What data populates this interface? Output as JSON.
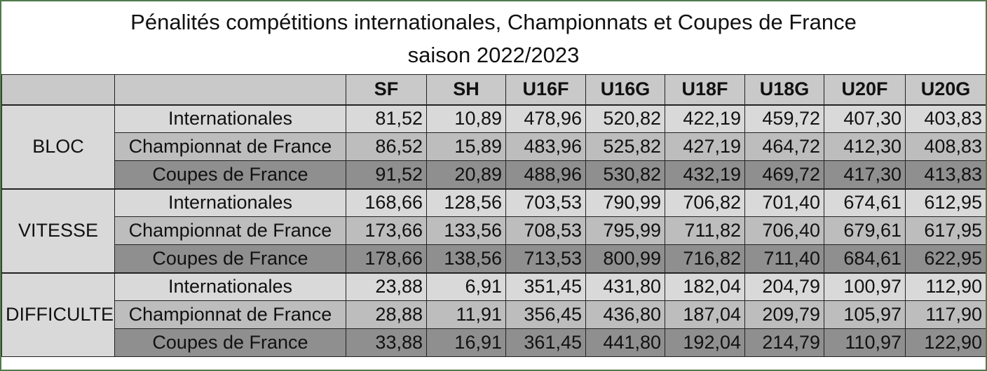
{
  "title": {
    "line1": "Pénalités compétitions internationales,  Championnats et Coupes de France",
    "line2": "saison 2022/2023"
  },
  "header": {
    "corner1": "",
    "corner2": "",
    "columns": [
      "SF",
      "SH",
      "U16F",
      "U16G",
      "U18F",
      "U18G",
      "U20F",
      "U20G"
    ]
  },
  "groups": [
    {
      "name": "BLOC",
      "rows": [
        {
          "label": "Internationales",
          "values": [
            "81,52",
            "10,89",
            "478,96",
            "520,82",
            "422,19",
            "459,72",
            "407,30",
            "403,83"
          ]
        },
        {
          "label": "Championnat de France",
          "values": [
            "86,52",
            "15,89",
            "483,96",
            "525,82",
            "427,19",
            "464,72",
            "412,30",
            "408,83"
          ]
        },
        {
          "label": "Coupes de France",
          "values": [
            "91,52",
            "20,89",
            "488,96",
            "530,82",
            "432,19",
            "469,72",
            "417,30",
            "413,83"
          ]
        }
      ]
    },
    {
      "name": "VITESSE",
      "rows": [
        {
          "label": "Internationales",
          "values": [
            "168,66",
            "128,56",
            "703,53",
            "790,99",
            "706,82",
            "701,40",
            "674,61",
            "612,95"
          ]
        },
        {
          "label": "Championnat de France",
          "values": [
            "173,66",
            "133,56",
            "708,53",
            "795,99",
            "711,82",
            "706,40",
            "679,61",
            "617,95"
          ]
        },
        {
          "label": "Coupes de France",
          "values": [
            "178,66",
            "138,56",
            "713,53",
            "800,99",
            "716,82",
            "711,40",
            "684,61",
            "622,95"
          ]
        }
      ]
    },
    {
      "name": "DIFFICULTE",
      "rows": [
        {
          "label": "Internationales",
          "values": [
            "23,88",
            "6,91",
            "351,45",
            "431,80",
            "182,04",
            "204,79",
            "100,97",
            "112,90"
          ]
        },
        {
          "label": "Championnat de France",
          "values": [
            "28,88",
            "11,91",
            "356,45",
            "436,80",
            "187,04",
            "209,79",
            "105,97",
            "117,90"
          ]
        },
        {
          "label": "Coupes de France",
          "values": [
            "33,88",
            "16,91",
            "361,45",
            "441,80",
            "192,04",
            "214,79",
            "110,97",
            "122,90"
          ]
        }
      ]
    }
  ],
  "colors": {
    "frame_border": "#4e7a4a",
    "header_bg": "#c9c9c9",
    "row_internationales": "#d9d9d9",
    "row_championnat": "#bdbdbd",
    "row_coupes": "#8f8f8f"
  }
}
